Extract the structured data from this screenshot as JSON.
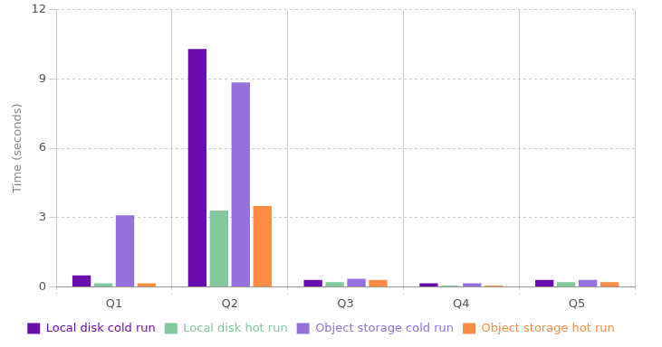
{
  "chart_data": {
    "type": "bar",
    "y_label": "Time (seconds)",
    "categories": [
      "Q1",
      "Q2",
      "Q3",
      "Q4",
      "Q5"
    ],
    "series": [
      {
        "name": "Local disk cold run",
        "color": "#6a0dad",
        "values": [
          0.5,
          10.3,
          0.3,
          0.15,
          0.3
        ]
      },
      {
        "name": "Local disk hot run",
        "color": "#82c99f",
        "values": [
          0.15,
          3.3,
          0.2,
          0.05,
          0.2
        ]
      },
      {
        "name": "Object storage cold run",
        "color": "#9370db",
        "values": [
          3.1,
          8.85,
          0.35,
          0.15,
          0.3
        ]
      },
      {
        "name": "Object storage hot run",
        "color": "#ff8c42",
        "values": [
          0.15,
          3.5,
          0.3,
          0.05,
          0.2
        ]
      }
    ],
    "ylim": [
      0,
      12
    ],
    "yticks": [
      0,
      3,
      6,
      9,
      12
    ],
    "grid": true,
    "legend": "bottom"
  }
}
